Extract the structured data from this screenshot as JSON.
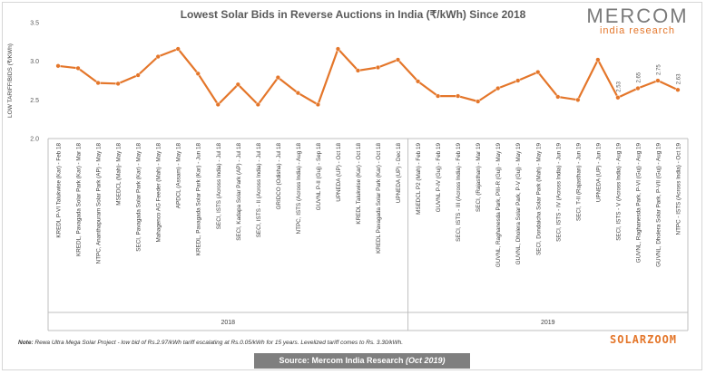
{
  "chart_data": {
    "type": "line",
    "title": "Lowest Solar Bids in Reverse Auctions in India (₹/kWh) Since 2018",
    "ylabel": "LOW TARIFF/BIDS (₹/KWh)",
    "ylim": [
      2.0,
      3.5
    ],
    "yticks": [
      "2.0",
      "2.5",
      "3.0",
      "3.5"
    ],
    "grid": false,
    "line_color": "#e4762a",
    "categories": [
      "KREDL P-VI Talukwise (Kar) - Feb 18",
      "KREDL, Pavagada Solar Park (Kar) - Mar 18",
      "NTPC, Ananthapuram Solar Park (AP) - May 18",
      "MSEDCL (Mah)- May 18",
      "SECI, Pavagada Solar Park (Kar) - May 18",
      "Mahagenco AG Feeder (Mah) - May 18",
      "APDCL (Assam) - May 18",
      "KREDL, Pavagada Solar Park (Kar) - Jun 18",
      "SECI, ISTS (Across India) - Jul 18",
      "SECI, Kadapa Solar Park (AP) - Jul 18",
      "SECI, ISTS - II (Across India) - Jul 18",
      "GRIDCO (Odisha) - Jul 18",
      "NTPC, ISTS (Across India) - Aug 18",
      "GUVNL P-II (Guj) - Sep 18",
      "UPNEDA (UP) - Oct 18",
      "KREDL Talukwise (Kar) - Oct 18",
      "KREDL Pavagada Solar Park (Kar) - Oct 18",
      "UPNEDA (UP) - Dec 18",
      "MSEDCL P2 (Mah) - Feb 19",
      "GUVNL P-IV (Guj) - Feb 19",
      "SECI, ISTS - III (Across India) - Feb 19",
      "SECI, (Rajasthan) - Mar 19",
      "GUVNL, Raghanesda Park, PIII-R (Guj) - May 19",
      "GUVNL, Dholera Solar Park, P-V (Guj) - May 19",
      "SECI, Dondaicha Solar Park (Mah) - May 19",
      "SECI, ISTS - IV (Across India) - Jun 19",
      "SECI, T-II (Rajasthan) - Jun 19",
      "UPNEDA (UP) - Jun 19",
      "SECI, ISTS - V (Across India) - Aug 19",
      "GUVNL, Raghanesda Park, P-VI (Guj) - Aug 19",
      "GUVNL, Dholera Solar Park, P-VII (Guj) - Aug 19",
      "NTPC - ISTS (Across India) - Oct 19"
    ],
    "values": [
      2.94,
      2.91,
      2.72,
      2.71,
      2.82,
      3.06,
      3.16,
      2.84,
      2.44,
      2.7,
      2.44,
      2.79,
      2.59,
      2.44,
      3.16,
      2.88,
      2.92,
      3.02,
      2.74,
      2.55,
      2.55,
      2.48,
      2.65,
      2.75,
      2.86,
      2.54,
      2.5,
      3.02,
      2.53,
      2.65,
      2.75,
      2.63
    ],
    "data_labels": [
      {
        "index": 28,
        "text": "2.53"
      },
      {
        "index": 29,
        "text": "2.65"
      },
      {
        "index": 30,
        "text": "2.75"
      },
      {
        "index": 31,
        "text": "2.63"
      }
    ],
    "year_groups": [
      {
        "label": "2018",
        "start": 0,
        "end": 17
      },
      {
        "label": "2019",
        "start": 18,
        "end": 31
      }
    ]
  },
  "logo": {
    "name": "MERCOM",
    "tagline": "india research"
  },
  "brand": "SOLARZOOM",
  "note": {
    "prefix": "Note:",
    "text": " Rewa Ultra Mega Solar Project - low bid of Rs.2.97/kWh tariff escalating at Rs.0.05/kWh for 15 years. Levelized tariff comes to Rs. 3.30/kWh."
  },
  "source": {
    "text": "Source: Mercom India Research ",
    "date": "(Oct 2019)"
  }
}
